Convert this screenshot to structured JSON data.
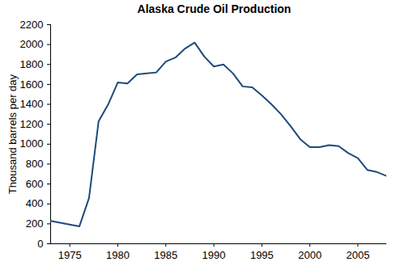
{
  "chart_data": {
    "type": "line",
    "title": "Alaska Crude Oil Production",
    "y_label": "Thousand barrels per day",
    "x": [
      1973,
      1976,
      1977,
      1978,
      1979,
      1980,
      1981,
      1982,
      1983,
      1984,
      1985,
      1986,
      1987,
      1988,
      1989,
      1990,
      1991,
      1992,
      1993,
      1994,
      1995,
      1996,
      1997,
      1998,
      1999,
      2000,
      2001,
      2002,
      2003,
      2004,
      2005,
      2006,
      2007,
      2008
    ],
    "values": [
      230,
      175,
      460,
      1230,
      1400,
      1620,
      1610,
      1700,
      1710,
      1720,
      1830,
      1870,
      1960,
      2020,
      1880,
      1780,
      1800,
      1710,
      1580,
      1570,
      1490,
      1400,
      1300,
      1180,
      1050,
      970,
      970,
      990,
      980,
      910,
      860,
      740,
      720,
      680
    ],
    "color": "#1d4b7c",
    "xlim": [
      1973,
      2008
    ],
    "xticks": [
      1975,
      1980,
      1985,
      1990,
      1995,
      2000,
      2005
    ],
    "ylim": [
      0,
      2200
    ],
    "yticks": [
      0,
      200,
      400,
      600,
      800,
      1000,
      1200,
      1400,
      1600,
      1800,
      2000,
      2200
    ],
    "grid": false
  }
}
